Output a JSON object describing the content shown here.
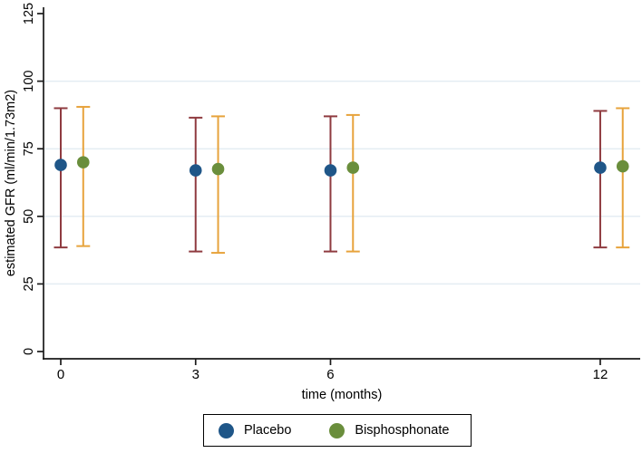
{
  "chart_data": {
    "type": "scatter",
    "subtype": "point-estimates-with-error-bars",
    "title": "",
    "xlabel": "time (months)",
    "ylabel": "estimated GFR (ml/min/1.73m2)",
    "x_ticks": [
      0,
      3,
      6,
      12
    ],
    "x_tick_labels": [
      "0",
      "3",
      "6",
      "12"
    ],
    "y_ticks": [
      0,
      25,
      50,
      75,
      100,
      125
    ],
    "y_tick_labels": [
      "0",
      "25",
      "50",
      "75",
      "100",
      "125"
    ],
    "y_tick_labels_rotated": true,
    "xlim": [
      -0.4,
      12.9
    ],
    "ylim": [
      0,
      125
    ],
    "grid": true,
    "grid_y_values": [
      25,
      50,
      75,
      100
    ],
    "series": [
      {
        "name": "Placebo",
        "marker": "circle",
        "marker_color": "#1f5688",
        "error_color": "#8f3b40",
        "x": [
          0,
          3,
          6,
          12
        ],
        "x_offset_months": 0,
        "mean": [
          69,
          67,
          67,
          68
        ],
        "ci_low": [
          38.5,
          37,
          37,
          38.5
        ],
        "ci_high": [
          90,
          86.5,
          87,
          89
        ]
      },
      {
        "name": "Bisphosphonate",
        "marker": "circle",
        "marker_color": "#6a8e3c",
        "error_color": "#e7a33c",
        "x": [
          0,
          3,
          6,
          12
        ],
        "x_offset_months": 0.5,
        "mean": [
          70,
          67.5,
          68,
          68.5
        ],
        "ci_low": [
          39,
          36.5,
          37,
          38.5
        ],
        "ci_high": [
          90.5,
          87,
          87.5,
          90
        ]
      }
    ],
    "legend": {
      "position": "bottom-center",
      "border": true,
      "entries": [
        "Placebo",
        "Bisphosphonate"
      ]
    },
    "colors": {
      "grid": "#e4edf3",
      "axis": "#1a1a1a",
      "text": "#000000",
      "background": "#ffffff"
    }
  }
}
